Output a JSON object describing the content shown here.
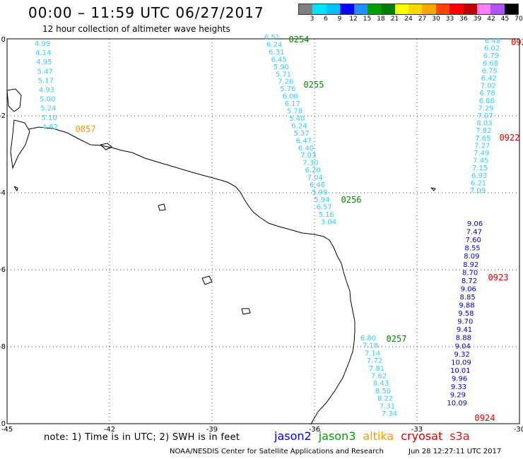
{
  "header": {
    "title": "00:00 – 11:59 UTC 06/27/2017",
    "subtitle": "12 hour collection of altimeter wave heights"
  },
  "legend": {
    "labels": [
      "3",
      "6",
      "9",
      "12",
      "15",
      "18",
      "21",
      "24",
      "27",
      "30",
      "33",
      "36",
      "39",
      "42",
      "45",
      "70"
    ],
    "unit": "(ft)",
    "colors": [
      "#808080",
      "#00e5ff",
      "#00bfff",
      "#0000ff",
      "#1e90ff",
      "#00a000",
      "#008000",
      "#ffff00",
      "#ffd700",
      "#ffa500",
      "#ff4500",
      "#ff0000",
      "#c00000",
      "#ff80ff",
      "#b050ff",
      "#000000"
    ]
  },
  "map": {
    "x_axis": {
      "range": [
        -45,
        -30
      ],
      "ticks": [
        "-45",
        "-42",
        "-39",
        "-36",
        "-33",
        "-30"
      ]
    },
    "y_axis": {
      "range": [
        -10,
        0
      ],
      "ticks": [
        "0",
        "-2",
        "-4",
        "-6",
        "-8",
        "-10"
      ]
    }
  },
  "chart_data": {
    "type": "scatter",
    "title": "00:00 – 11:59 UTC 06/27/2017",
    "x_range": [
      -45,
      -30
    ],
    "y_range": [
      -10,
      0
    ],
    "series": [
      {
        "name": "altika",
        "color": "#33ccff",
        "values": [
          "4.99",
          "4.14",
          "4.95",
          "5.47",
          "5.17",
          "4.93",
          "5.00",
          "5.24",
          "5.10",
          "4.62"
        ]
      },
      {
        "name": "jason3",
        "color": "#33ccff",
        "values": [
          "6.51",
          "6.24",
          "6.31",
          "6.45",
          "5.90",
          "5.71",
          "7.26",
          "5.76",
          "6.00",
          "6.17",
          "5.78",
          "5.40",
          "6.24",
          "5.37",
          "6.47",
          "6.40",
          "7.03",
          "7.30",
          "6.20",
          "7.04",
          "6.46",
          "5.99",
          "5.94",
          "6.57",
          "5.16",
          "3.04"
        ]
      },
      {
        "name": "jason3",
        "color": "#33ccff",
        "values": [
          "6.80",
          "7.18",
          "7.14",
          "7.72",
          "7.81",
          "7.62",
          "8.43",
          "8.50",
          "8.22",
          "7.31",
          "7.34"
        ]
      },
      {
        "name": "cryosat",
        "color": "#33ccff",
        "values": [
          "6.48",
          "6.02",
          "6.79",
          "6.68",
          "6.75",
          "6.42",
          "7.02",
          "6.78",
          "6.88",
          "7.29",
          "7.07",
          "8.03",
          "7.82",
          "7.65",
          "7.27",
          "7.49",
          "7.45",
          "7.15",
          "6.93",
          "6.21",
          "7.09"
        ]
      },
      {
        "name": "cryosat",
        "color": "#0000cc",
        "values": [
          "9.06",
          "7.47",
          "7.60",
          "8.55",
          "8.09",
          "8.92",
          "8.70",
          "8.72",
          "9.06",
          "8.85",
          "9.88",
          "9.58",
          "9.70",
          "9.41",
          "8.88",
          "9.04",
          "9.32",
          "10.09",
          "10.01",
          "9.96",
          "9.33",
          "9.29",
          "10.09"
        ]
      }
    ],
    "time_labels": [
      {
        "text": "0857",
        "color": "#ff9900"
      },
      {
        "text": "0254",
        "color": "#008800"
      },
      {
        "text": "0255",
        "color": "#008800"
      },
      {
        "text": "0256",
        "color": "#008800"
      },
      {
        "text": "0257",
        "color": "#008800"
      },
      {
        "text": "092",
        "color": "#dd0000"
      },
      {
        "text": "0922",
        "color": "#dd0000"
      },
      {
        "text": "0923",
        "color": "#dd0000"
      },
      {
        "text": "0924",
        "color": "#dd0000"
      }
    ]
  },
  "note": "note: 1) Time is in UTC; 2) SWH is in feet",
  "missions": [
    {
      "name": "jason2",
      "color": "#0000dd"
    },
    {
      "name": "jason3",
      "color": "#00a000"
    },
    {
      "name": "altika",
      "color": "#ff9900"
    },
    {
      "name": "cryosat",
      "color": "#dd0000"
    },
    {
      "name": "s3a",
      "color": "#cc2222"
    }
  ],
  "footer": {
    "credit": "NOAA/NESDIS Center for Satellite Applications and Research",
    "timestamp": "Jun 28 12:27:11 UTC 2017"
  }
}
